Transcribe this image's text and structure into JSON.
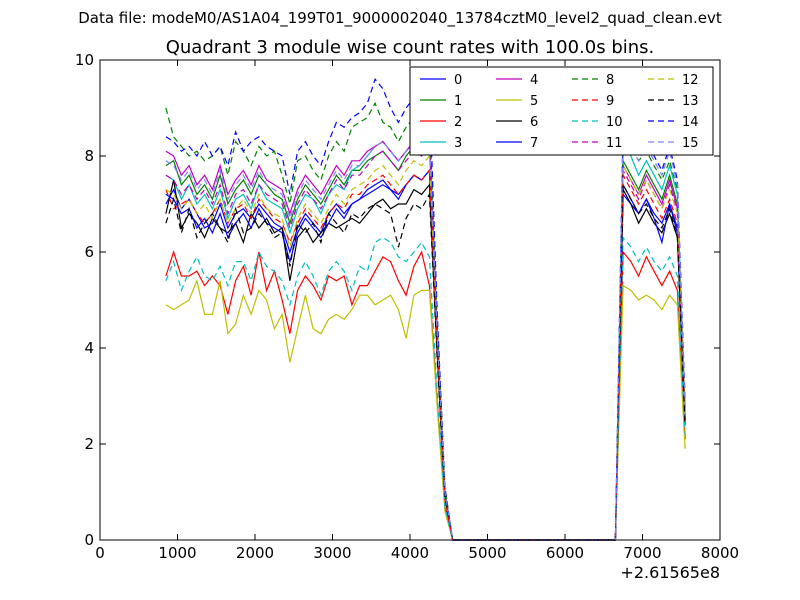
{
  "figure": {
    "suptitle": "Data file: modeM0/AS1A04_199T01_9000002040_13784cztM0_level2_quad_clean.evt"
  },
  "chart_data": {
    "type": "line",
    "title": "Quadrant 3 module wise count rates with 100.0s bins.",
    "xlabel": "",
    "ylabel": "",
    "x_offset_label": "+2.61565e8",
    "xlim": [
      0,
      8000
    ],
    "ylim": [
      0,
      10
    ],
    "xticks": [
      "0",
      "1000",
      "2000",
      "3000",
      "4000",
      "5000",
      "6000",
      "7000",
      "8000"
    ],
    "yticks": [
      "0",
      "2",
      "4",
      "6",
      "8",
      "10"
    ],
    "grid": false,
    "legend_position": "upper-right",
    "legend_columns": 4,
    "x": [
      850,
      950,
      1050,
      1150,
      1250,
      1350,
      1450,
      1550,
      1650,
      1750,
      1850,
      1950,
      2050,
      2150,
      2250,
      2350,
      2450,
      2550,
      2650,
      2750,
      2850,
      2950,
      3050,
      3150,
      3250,
      3350,
      3450,
      3550,
      3650,
      3750,
      3850,
      3950,
      4050,
      4150,
      4250,
      4350,
      4450,
      4550,
      6550,
      6650,
      6750,
      6850,
      6950,
      7050,
      7150,
      7250,
      7350,
      7450,
      7550
    ],
    "series": [
      {
        "name": "0",
        "color": "#0000ff",
        "style": "solid",
        "values": [
          7.0,
          7.3,
          6.9,
          7.1,
          6.8,
          6.5,
          6.6,
          7.0,
          6.5,
          6.8,
          6.9,
          6.7,
          7.0,
          6.8,
          6.6,
          6.5,
          6.0,
          6.5,
          6.8,
          6.6,
          6.4,
          6.8,
          7.0,
          6.8,
          7.0,
          7.1,
          7.2,
          7.3,
          7.4,
          7.3,
          7.2,
          7.4,
          7.6,
          7.5,
          7.7,
          4.1,
          0.9,
          0.0,
          0.0,
          0.0,
          7.2,
          7.0,
          6.8,
          7.1,
          6.8,
          6.6,
          7.0,
          6.5,
          2.5
        ]
      },
      {
        "name": "1",
        "color": "#008000",
        "style": "solid",
        "values": [
          7.8,
          7.9,
          7.4,
          7.6,
          7.2,
          7.4,
          7.1,
          7.6,
          7.0,
          7.3,
          7.5,
          7.2,
          7.6,
          7.4,
          7.2,
          7.1,
          6.6,
          7.1,
          7.4,
          7.2,
          7.0,
          7.3,
          7.6,
          7.4,
          7.7,
          7.7,
          7.9,
          8.0,
          8.1,
          7.9,
          7.7,
          8.0,
          8.2,
          8.1,
          8.3,
          4.3,
          1.0,
          0.0,
          0.0,
          0.0,
          7.9,
          7.6,
          7.3,
          7.7,
          7.4,
          7.1,
          7.6,
          7.0,
          2.7
        ]
      },
      {
        "name": "2",
        "color": "#ff0000",
        "style": "solid",
        "values": [
          5.5,
          6.0,
          5.5,
          5.5,
          5.6,
          5.3,
          5.5,
          5.3,
          4.7,
          5.4,
          5.7,
          5.1,
          6.0,
          5.2,
          5.6,
          5.0,
          4.3,
          5.2,
          5.5,
          5.3,
          5.0,
          5.5,
          5.4,
          5.5,
          4.9,
          5.3,
          5.3,
          5.6,
          5.9,
          5.8,
          5.4,
          5.1,
          5.7,
          6.0,
          5.3,
          2.9,
          0.7,
          0.0,
          0.0,
          0.0,
          6.0,
          5.8,
          5.5,
          5.9,
          5.6,
          5.3,
          5.6,
          5.2,
          2.1
        ]
      },
      {
        "name": "3",
        "color": "#00bfbf",
        "style": "solid",
        "values": [
          7.6,
          7.5,
          7.1,
          7.4,
          7.0,
          7.2,
          6.9,
          7.3,
          6.7,
          7.1,
          7.2,
          6.9,
          7.4,
          7.1,
          7.0,
          6.9,
          6.4,
          6.9,
          7.2,
          7.1,
          6.8,
          7.2,
          7.4,
          7.3,
          7.7,
          7.8,
          8.0,
          8.2,
          8.3,
          8.1,
          7.9,
          8.1,
          8.3,
          8.2,
          8.4,
          4.4,
          1.0,
          0.0,
          0.0,
          0.0,
          8.2,
          8.0,
          7.6,
          7.9,
          7.6,
          7.3,
          7.8,
          7.2,
          2.6
        ]
      },
      {
        "name": "4",
        "color": "#bf00bf",
        "style": "solid",
        "values": [
          8.1,
          8.0,
          7.6,
          7.8,
          7.4,
          7.6,
          7.3,
          7.8,
          7.2,
          7.5,
          7.7,
          7.4,
          7.8,
          7.5,
          7.4,
          7.3,
          6.8,
          7.3,
          7.6,
          7.4,
          7.2,
          7.5,
          7.8,
          7.6,
          7.9,
          7.9,
          8.1,
          8.2,
          8.3,
          8.1,
          7.9,
          8.1,
          8.3,
          8.2,
          8.4,
          4.4,
          1.0,
          0.0,
          0.0,
          0.0,
          7.8,
          7.5,
          7.2,
          7.6,
          7.3,
          7.0,
          7.5,
          6.9,
          2.6
        ]
      },
      {
        "name": "5",
        "color": "#bfbf00",
        "style": "solid",
        "values": [
          4.9,
          4.8,
          4.9,
          5.0,
          5.4,
          4.7,
          4.7,
          5.4,
          4.3,
          4.5,
          5.1,
          4.7,
          5.2,
          5.0,
          4.4,
          4.7,
          3.7,
          4.4,
          5.1,
          4.4,
          4.3,
          4.6,
          4.7,
          4.6,
          4.8,
          5.1,
          5.1,
          4.9,
          5.0,
          5.1,
          4.8,
          4.2,
          5.1,
          5.2,
          5.2,
          2.8,
          0.6,
          0.0,
          0.0,
          0.0,
          5.3,
          5.2,
          5.0,
          5.1,
          5.0,
          4.8,
          5.1,
          4.9,
          1.9
        ]
      },
      {
        "name": "6",
        "color": "#000000",
        "style": "solid",
        "values": [
          6.8,
          7.5,
          6.5,
          6.8,
          6.6,
          6.3,
          6.7,
          6.5,
          6.4,
          6.6,
          6.2,
          6.8,
          6.5,
          6.7,
          6.4,
          6.5,
          5.4,
          6.3,
          6.5,
          6.2,
          6.4,
          6.6,
          6.5,
          6.6,
          6.7,
          6.6,
          6.8,
          7.0,
          7.1,
          6.9,
          7.0,
          7.0,
          7.3,
          7.2,
          7.4,
          3.9,
          0.9,
          0.0,
          0.0,
          0.0,
          7.3,
          7.0,
          6.6,
          6.9,
          6.6,
          6.4,
          6.8,
          6.3,
          2.4
        ]
      },
      {
        "name": "7",
        "color": "#0000ff",
        "style": "solid",
        "values": [
          7.2,
          7.1,
          6.8,
          6.9,
          6.5,
          6.7,
          6.4,
          6.8,
          6.3,
          6.6,
          6.8,
          6.5,
          6.9,
          6.6,
          6.5,
          6.4,
          5.8,
          6.4,
          6.7,
          6.5,
          6.3,
          6.6,
          6.9,
          6.7,
          7.0,
          7.1,
          7.3,
          7.4,
          7.5,
          7.3,
          7.1,
          7.4,
          7.6,
          7.5,
          7.7,
          4.1,
          0.9,
          0.0,
          0.0,
          0.0,
          7.4,
          7.1,
          6.8,
          7.1,
          6.7,
          6.2,
          7.0,
          6.4,
          2.5
        ]
      },
      {
        "name": "8",
        "color": "#008000",
        "style": "dashed",
        "values": [
          9.0,
          8.4,
          8.2,
          8.0,
          8.1,
          7.9,
          8.0,
          8.2,
          7.6,
          8.3,
          8.1,
          7.8,
          8.2,
          8.0,
          8.1,
          7.6,
          7.0,
          7.9,
          8.0,
          7.7,
          7.5,
          8.0,
          8.3,
          8.1,
          8.6,
          8.7,
          8.8,
          9.1,
          8.7,
          8.6,
          8.3,
          8.6,
          8.8,
          8.7,
          8.9,
          4.6,
          1.1,
          0.0,
          0.0,
          0.0,
          8.4,
          8.2,
          7.9,
          8.1,
          7.8,
          7.5,
          7.9,
          7.3,
          2.8
        ]
      },
      {
        "name": "9",
        "color": "#ff0000",
        "style": "dashed",
        "values": [
          7.3,
          6.9,
          7.0,
          7.1,
          6.8,
          6.6,
          6.8,
          7.1,
          6.6,
          6.9,
          7.0,
          6.7,
          7.1,
          6.9,
          6.7,
          6.6,
          6.2,
          6.6,
          6.9,
          6.7,
          6.5,
          6.8,
          7.0,
          6.9,
          7.2,
          7.2,
          7.4,
          7.5,
          7.6,
          7.4,
          7.2,
          7.4,
          7.6,
          7.5,
          7.7,
          4.1,
          0.9,
          0.0,
          0.0,
          0.0,
          7.6,
          7.3,
          7.0,
          7.3,
          7.0,
          6.7,
          7.1,
          6.6,
          2.5
        ]
      },
      {
        "name": "10",
        "color": "#00bfbf",
        "style": "dashed",
        "values": [
          5.4,
          5.8,
          5.2,
          5.6,
          5.9,
          5.5,
          5.4,
          5.7,
          5.3,
          5.8,
          5.8,
          5.4,
          6.0,
          5.7,
          5.6,
          5.4,
          4.9,
          5.5,
          5.8,
          5.5,
          5.1,
          5.6,
          5.8,
          5.6,
          5.2,
          5.7,
          5.6,
          6.2,
          6.3,
          6.2,
          5.9,
          5.8,
          6.0,
          6.2,
          5.9,
          3.1,
          0.7,
          0.0,
          0.0,
          0.0,
          6.3,
          6.1,
          5.8,
          6.1,
          5.8,
          5.6,
          5.9,
          5.5,
          2.2
        ]
      },
      {
        "name": "11",
        "color": "#bf00bf",
        "style": "dashed",
        "values": [
          7.6,
          7.5,
          7.2,
          7.4,
          7.1,
          7.3,
          7.0,
          7.4,
          6.8,
          7.2,
          7.3,
          7.0,
          7.4,
          7.2,
          7.1,
          7.0,
          6.5,
          7.0,
          7.3,
          7.1,
          6.9,
          7.2,
          7.5,
          7.3,
          7.6,
          7.6,
          7.8,
          8.0,
          8.1,
          7.9,
          7.7,
          7.9,
          8.1,
          8.0,
          8.2,
          4.3,
          1.0,
          0.0,
          0.0,
          0.0,
          7.7,
          7.4,
          7.1,
          7.5,
          7.2,
          6.9,
          7.4,
          6.8,
          2.6
        ]
      },
      {
        "name": "12",
        "color": "#bfbf00",
        "style": "dashed",
        "values": [
          7.3,
          7.2,
          6.9,
          7.1,
          6.8,
          7.0,
          6.7,
          7.1,
          6.6,
          6.9,
          7.1,
          6.8,
          7.2,
          6.9,
          6.8,
          6.7,
          6.1,
          6.7,
          7.0,
          6.8,
          6.6,
          6.9,
          7.2,
          7.0,
          7.3,
          7.4,
          7.5,
          7.7,
          7.8,
          7.6,
          7.4,
          7.7,
          7.9,
          7.8,
          8.0,
          4.2,
          1.0,
          0.0,
          0.0,
          0.0,
          7.8,
          7.5,
          7.2,
          7.5,
          7.2,
          6.9,
          7.3,
          6.8,
          2.6
        ]
      },
      {
        "name": "13",
        "color": "#000000",
        "style": "dashed",
        "values": [
          6.6,
          7.1,
          6.4,
          6.9,
          6.3,
          6.6,
          6.8,
          6.5,
          6.2,
          6.9,
          6.4,
          6.5,
          6.8,
          6.6,
          6.3,
          6.4,
          5.7,
          6.6,
          6.4,
          6.6,
          6.2,
          6.8,
          6.6,
          6.4,
          6.8,
          6.7,
          6.9,
          7.0,
          6.9,
          6.8,
          6.1,
          6.7,
          7.0,
          6.9,
          7.2,
          3.8,
          0.9,
          0.0,
          0.0,
          0.0,
          7.4,
          7.1,
          6.8,
          7.0,
          6.7,
          6.5,
          6.9,
          6.3,
          2.4
        ]
      },
      {
        "name": "14",
        "color": "#0000ff",
        "style": "dashed",
        "values": [
          8.4,
          8.3,
          8.1,
          8.2,
          8.0,
          8.3,
          8.0,
          8.2,
          7.8,
          8.5,
          8.1,
          8.3,
          8.4,
          8.2,
          8.1,
          8.0,
          7.2,
          8.1,
          8.3,
          8.0,
          7.8,
          8.3,
          8.7,
          8.6,
          8.8,
          8.9,
          9.1,
          9.6,
          9.4,
          9.0,
          8.7,
          9.0,
          9.2,
          9.1,
          9.4,
          4.8,
          1.1,
          0.0,
          0.0,
          0.0,
          8.7,
          8.5,
          8.2,
          8.4,
          8.0,
          7.7,
          8.2,
          7.5,
          2.9
        ]
      },
      {
        "name": "15",
        "color": "#8080ff",
        "style": "dashed",
        "values": [
          7.9,
          7.8,
          7.5,
          7.7,
          7.3,
          7.5,
          7.2,
          7.7,
          7.1,
          7.4,
          7.6,
          7.3,
          7.7,
          7.4,
          7.3,
          7.2,
          6.7,
          7.2,
          7.5,
          7.3,
          7.1,
          7.4,
          7.7,
          7.5,
          7.8,
          7.8,
          8.0,
          8.2,
          8.3,
          8.1,
          7.9,
          8.1,
          8.3,
          8.2,
          8.5,
          4.4,
          1.0,
          0.0,
          0.0,
          0.0,
          8.5,
          8.2,
          7.9,
          8.2,
          7.9,
          7.6,
          8.1,
          7.4,
          2.8
        ]
      }
    ]
  }
}
